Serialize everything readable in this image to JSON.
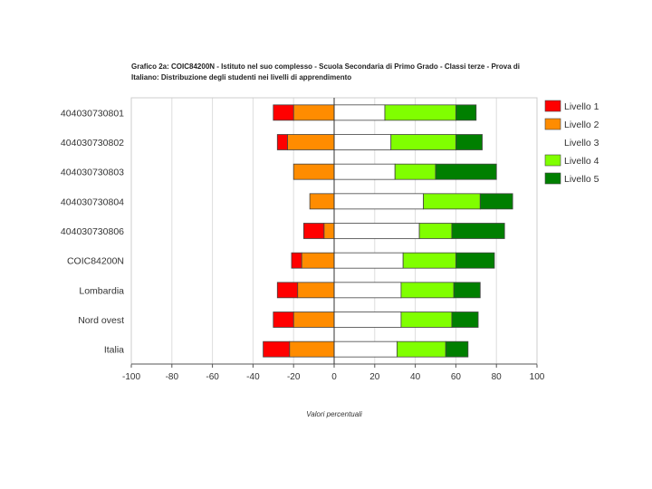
{
  "chart_data": {
    "type": "bar",
    "orientation": "horizontal",
    "stacking": "diverging",
    "title": "Grafico 2a: COIC84200N - Istituto nel suo complesso - Scuola Secondaria di Primo Grado - Classi terze - Prova di Italiano: Distribuzione degli studenti nei livelli di apprendimento",
    "xlabel": "Valori percentuali",
    "ylabel": "",
    "xlim": [
      -100,
      100
    ],
    "xticks": [
      "-100",
      "-80",
      "-60",
      "-40",
      "-20",
      "0",
      "20",
      "40",
      "60",
      "80",
      "100"
    ],
    "grid": true,
    "legend_position": "right",
    "categories": [
      "404030730801",
      "404030730802",
      "404030730803",
      "404030730804",
      "404030730806",
      "COIC84200N",
      "Lombardia",
      "Nord ovest",
      "Italia"
    ],
    "series": [
      {
        "name": "Livello 1",
        "color": "#ff0000",
        "side": "negative",
        "values": [
          10,
          5,
          0,
          0,
          10,
          5,
          10,
          10,
          13
        ]
      },
      {
        "name": "Livello 2",
        "color": "#ff8c00",
        "side": "negative",
        "values": [
          20,
          23,
          20,
          12,
          5,
          16,
          18,
          20,
          22
        ]
      },
      {
        "name": "Livello 3",
        "color": "#ffffff",
        "side": "positive",
        "values": [
          25,
          28,
          30,
          44,
          42,
          34,
          33,
          33,
          31
        ]
      },
      {
        "name": "Livello 4",
        "color": "#80ff00",
        "side": "positive",
        "values": [
          35,
          32,
          20,
          28,
          16,
          26,
          26,
          25,
          24
        ]
      },
      {
        "name": "Livello 5",
        "color": "#007f00",
        "side": "positive",
        "values": [
          10,
          13,
          30,
          16,
          26,
          19,
          13,
          13,
          11
        ]
      }
    ]
  }
}
